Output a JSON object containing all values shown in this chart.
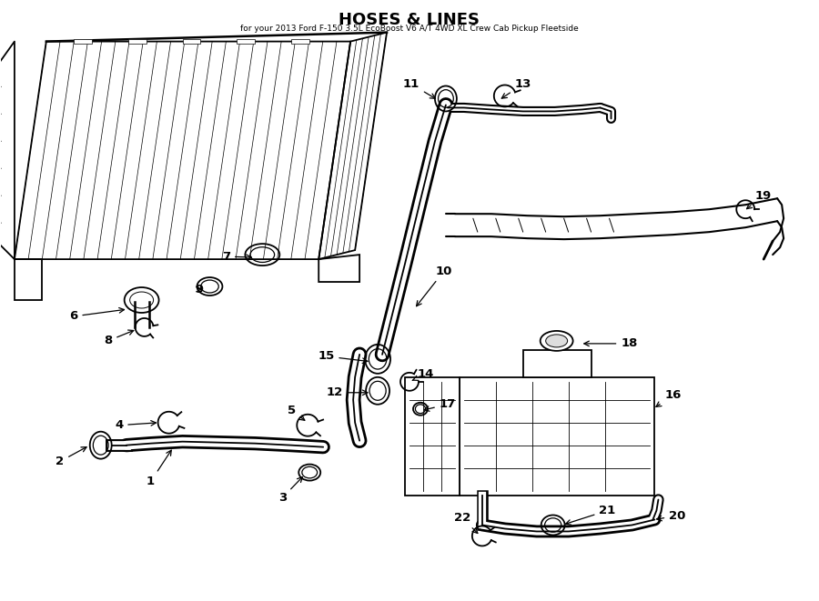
{
  "title": "HOSES & LINES",
  "subtitle": "for your 2013 Ford F-150 3.5L EcoBoost V6 A/T 4WD XL Crew Cab Pickup Fleetside",
  "bg_color": "#ffffff",
  "line_color": "#000000",
  "fig_width": 9.0,
  "fig_height": 6.61,
  "dpi": 100
}
